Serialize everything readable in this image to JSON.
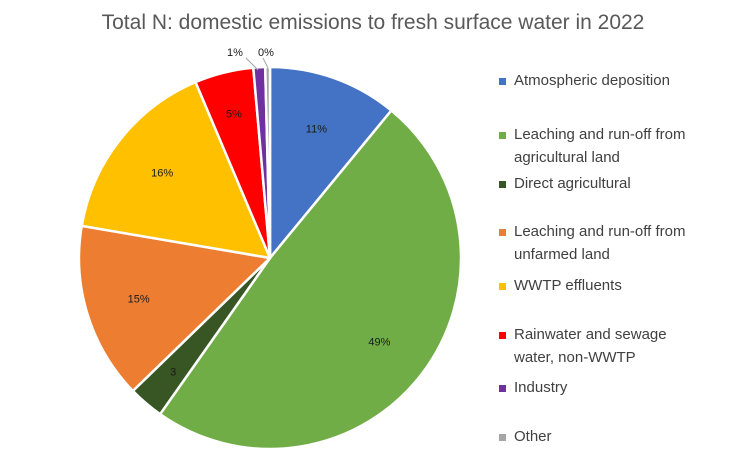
{
  "chart_data": {
    "type": "pie",
    "title": "Total N: domestic emissions to fresh surface water in 2022",
    "legend_position": "right",
    "slices": [
      {
        "label": "Atmospheric deposition",
        "legend_lines": [
          "Atmospheric deposition"
        ],
        "value": 11,
        "display": "11%",
        "color": "#4472C4"
      },
      {
        "label": "Leaching and run-off from agricultural land",
        "legend_lines": [
          "Leaching and run-off from",
          "agricultural land"
        ],
        "value": 49,
        "display": "49%",
        "color": "#70AD47"
      },
      {
        "label": "Direct agricultural",
        "legend_lines": [
          "Direct agricultural"
        ],
        "value": 3,
        "display": "3",
        "color": "#375623"
      },
      {
        "label": "Leaching and run-off from unfarmed land",
        "legend_lines": [
          "Leaching and run-off from",
          "unfarmed land"
        ],
        "value": 15,
        "display": "15%",
        "color": "#ED7D31"
      },
      {
        "label": "WWTP effluents",
        "legend_lines": [
          "WWTP effluents"
        ],
        "value": 16,
        "display": "16%",
        "color": "#FFC000"
      },
      {
        "label": "Rainwater and sewage water, non-WWTP",
        "legend_lines": [
          "Rainwater and sewage",
          "water, non-WWTP"
        ],
        "value": 5,
        "display": "5%",
        "color": "#FF0000"
      },
      {
        "label": "Industry",
        "legend_lines": [
          "Industry"
        ],
        "value": 1,
        "display": "1%",
        "color": "#7030A0"
      },
      {
        "label": "Other",
        "legend_lines": [
          "Other"
        ],
        "value": 0.4,
        "display": "0%",
        "color": "#A5A5A5"
      }
    ]
  }
}
